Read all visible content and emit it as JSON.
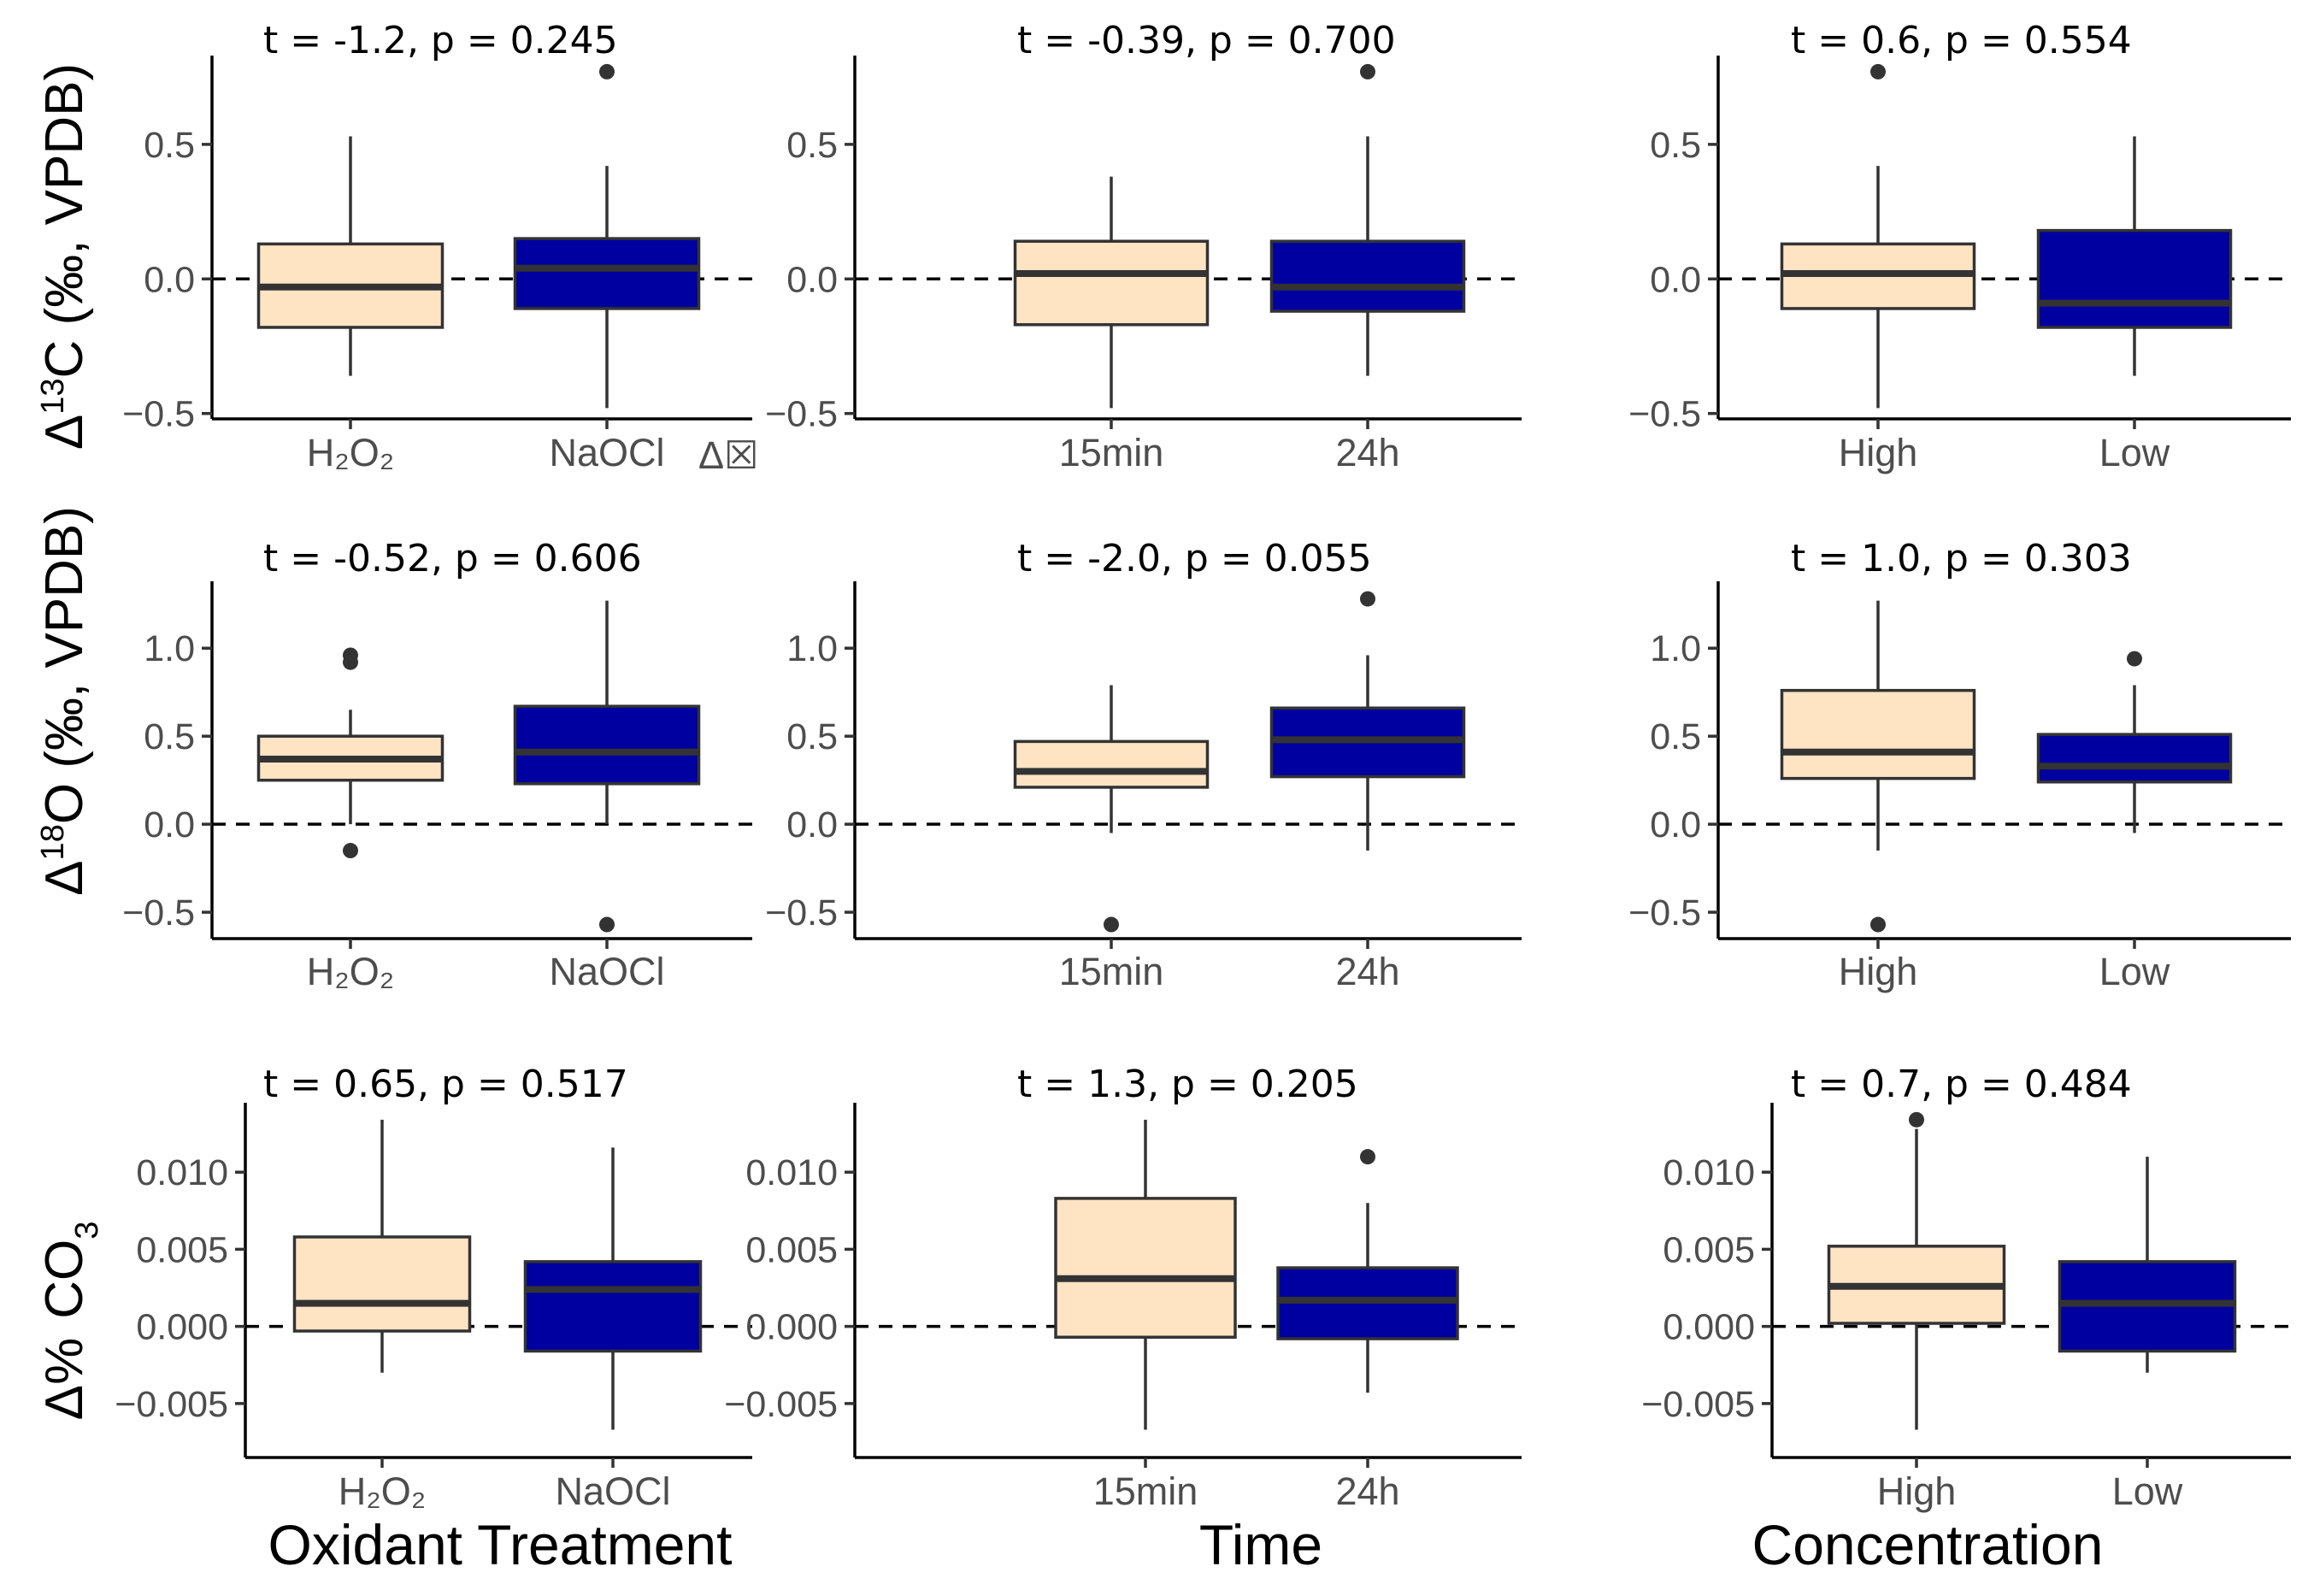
{
  "chart_data": {
    "type": "box",
    "colors": {
      "first_group": "#FFE4C4",
      "second_group": "#0000A0",
      "outline": "#333333"
    },
    "columns": [
      {
        "xlabel": "Oxidant Treatment",
        "categories": [
          "H₂O₂",
          "NaOCl"
        ]
      },
      {
        "xlabel": "Time",
        "categories": [
          "15min",
          "24h"
        ]
      },
      {
        "xlabel": "Concentration",
        "categories": [
          "High",
          "Low"
        ]
      }
    ],
    "rows": [
      {
        "ylabel_main": "Δ",
        "ylabel_sup": "13",
        "ylabel_rest": "C (‰, VPDB)",
        "ylim": [
          -0.52,
          0.83
        ],
        "ticks": [
          -0.5,
          0.0,
          0.5
        ],
        "tick_labels": [
          "−0.5",
          "0.0",
          "0.5"
        ],
        "stray_label": "Δ☒"
      },
      {
        "ylabel_main": "Δ",
        "ylabel_sup": "18",
        "ylabel_rest": "O (‰, VPDB)",
        "ylim": [
          -0.65,
          1.38
        ],
        "ticks": [
          -0.5,
          0.0,
          0.5,
          1.0
        ],
        "tick_labels": [
          "−0.5",
          "0.0",
          "0.5",
          "1.0"
        ]
      },
      {
        "ylabel_main": "Δ%",
        "ylabel_sub": "3",
        "ylabel_rest": "CO",
        "ylim": [
          -0.0085,
          0.0145
        ],
        "ticks": [
          -0.005,
          0.0,
          0.005,
          0.01
        ],
        "tick_labels": [
          "−0.005",
          "0.000",
          "0.005",
          "0.010"
        ]
      }
    ],
    "panels": [
      {
        "row": 0,
        "col": 0,
        "stat": "t = -1.2, p = 0.245",
        "boxes": [
          {
            "q1": -0.18,
            "median": -0.03,
            "q3": 0.13,
            "lower": -0.36,
            "upper": 0.53,
            "outliers": []
          },
          {
            "q1": -0.11,
            "median": 0.04,
            "q3": 0.15,
            "lower": -0.48,
            "upper": 0.42,
            "outliers": [
              0.77
            ]
          }
        ]
      },
      {
        "row": 0,
        "col": 1,
        "stat": "t = -0.39, p = 0.700",
        "boxes": [
          {
            "q1": -0.17,
            "median": 0.02,
            "q3": 0.14,
            "lower": -0.48,
            "upper": 0.38,
            "outliers": []
          },
          {
            "q1": -0.12,
            "median": -0.03,
            "q3": 0.14,
            "lower": -0.36,
            "upper": 0.53,
            "outliers": [
              0.77
            ]
          }
        ]
      },
      {
        "row": 0,
        "col": 2,
        "stat": "t = 0.6, p = 0.554",
        "boxes": [
          {
            "q1": -0.11,
            "median": 0.02,
            "q3": 0.13,
            "lower": -0.48,
            "upper": 0.42,
            "outliers": [
              0.77
            ]
          },
          {
            "q1": -0.18,
            "median": -0.09,
            "q3": 0.18,
            "lower": -0.36,
            "upper": 0.53,
            "outliers": []
          }
        ]
      },
      {
        "row": 1,
        "col": 0,
        "stat": "t = -0.52, p = 0.606",
        "boxes": [
          {
            "q1": 0.25,
            "median": 0.37,
            "q3": 0.5,
            "lower": 0.0,
            "upper": 0.65,
            "outliers": [
              0.96,
              0.92,
              -0.15
            ]
          },
          {
            "q1": 0.23,
            "median": 0.41,
            "q3": 0.67,
            "lower": 0.0,
            "upper": 1.27,
            "outliers": [
              -0.57
            ]
          }
        ]
      },
      {
        "row": 1,
        "col": 1,
        "stat": "t = -2.0, p = 0.055",
        "boxes": [
          {
            "q1": 0.21,
            "median": 0.3,
            "q3": 0.47,
            "lower": -0.05,
            "upper": 0.79,
            "outliers": [
              -0.57
            ]
          },
          {
            "q1": 0.27,
            "median": 0.48,
            "q3": 0.66,
            "lower": -0.15,
            "upper": 0.96,
            "outliers": [
              1.28
            ]
          }
        ]
      },
      {
        "row": 1,
        "col": 2,
        "stat": "t = 1.0, p = 0.303",
        "boxes": [
          {
            "q1": 0.26,
            "median": 0.41,
            "q3": 0.76,
            "lower": -0.15,
            "upper": 1.27,
            "outliers": [
              -0.57
            ]
          },
          {
            "q1": 0.24,
            "median": 0.33,
            "q3": 0.51,
            "lower": -0.05,
            "upper": 0.79,
            "outliers": [
              0.94
            ]
          }
        ]
      },
      {
        "row": 2,
        "col": 0,
        "stat": "t = 0.65, p = 0.517",
        "boxes": [
          {
            "q1": -0.0003,
            "median": 0.0015,
            "q3": 0.0058,
            "lower": -0.003,
            "upper": 0.0134,
            "outliers": []
          },
          {
            "q1": -0.0016,
            "median": 0.0024,
            "q3": 0.0042,
            "lower": -0.0067,
            "upper": 0.0116,
            "outliers": []
          }
        ]
      },
      {
        "row": 2,
        "col": 1,
        "stat": "t = 1.3, p = 0.205",
        "boxes": [
          {
            "q1": -0.0007,
            "median": 0.0031,
            "q3": 0.0083,
            "lower": -0.0067,
            "upper": 0.0134,
            "outliers": []
          },
          {
            "q1": -0.0008,
            "median": 0.0017,
            "q3": 0.0038,
            "lower": -0.0043,
            "upper": 0.008,
            "outliers": [
              0.011
            ]
          }
        ]
      },
      {
        "row": 2,
        "col": 2,
        "stat": "t = 0.7, p = 0.484",
        "boxes": [
          {
            "q1": 0.0002,
            "median": 0.0026,
            "q3": 0.0052,
            "lower": -0.0067,
            "upper": 0.0128,
            "outliers": [
              0.0134
            ]
          },
          {
            "q1": -0.0016,
            "median": 0.0015,
            "q3": 0.0042,
            "lower": -0.003,
            "upper": 0.011,
            "outliers": []
          }
        ]
      }
    ]
  }
}
